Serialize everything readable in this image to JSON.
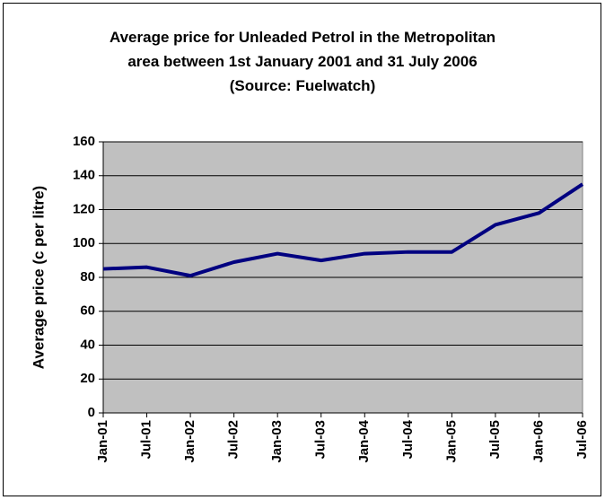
{
  "chart_data": {
    "type": "line",
    "title": "Average price for Unleaded Petrol in the Metropolitan area between 1st January 2001 and 31 July 2006 (Source: Fuelwatch)",
    "ylabel": "Average price (c per litre)",
    "categories": [
      "Jan-01",
      "Jul-01",
      "Jan-02",
      "Jul-02",
      "Jan-03",
      "Jul-03",
      "Jan-04",
      "Jul-04",
      "Jan-05",
      "Jul-05",
      "Jan-06",
      "Jul-06"
    ],
    "values": [
      85,
      86,
      81,
      89,
      94,
      90,
      94,
      95,
      95,
      111,
      118,
      135
    ],
    "color": "#000080",
    "ylim": [
      0,
      160
    ],
    "yticks": [
      0,
      20,
      40,
      60,
      80,
      100,
      120,
      140,
      160
    ],
    "grid": true
  }
}
